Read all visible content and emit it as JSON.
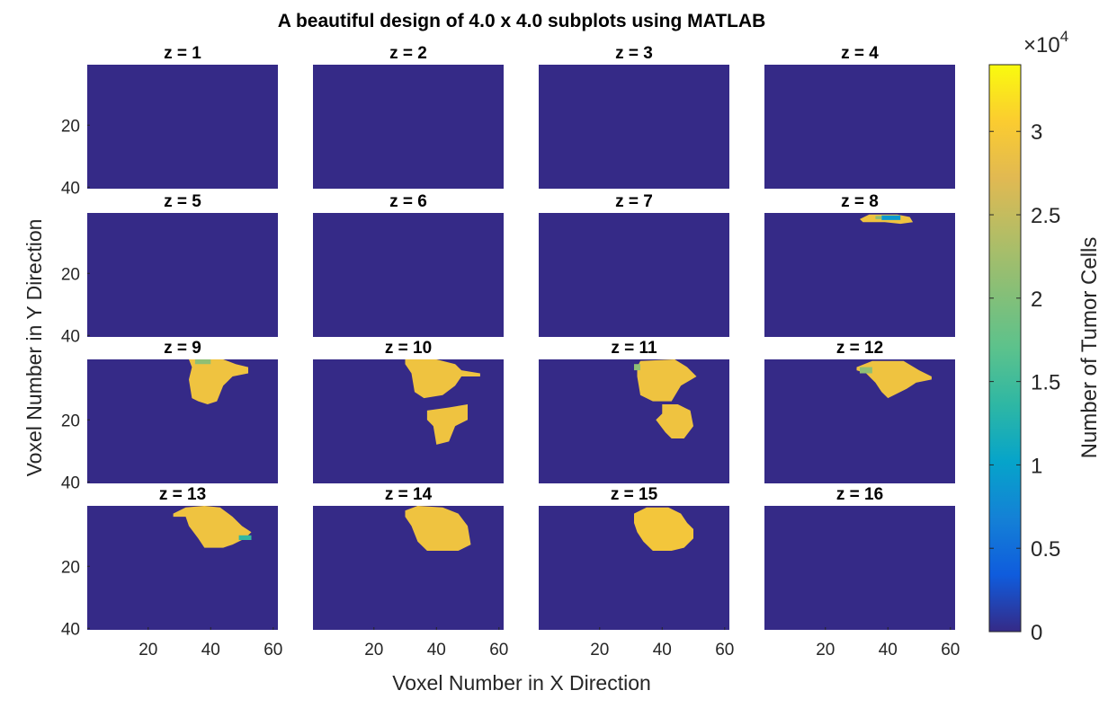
{
  "chart_data": {
    "type": "heatmap",
    "title": "A beautiful design of 4.0 x 4.0 subplots using MATLAB",
    "xlabel": "Voxel Number in X Direction",
    "ylabel": "Voxel Number in Y Direction",
    "grid": false,
    "layout": "4 x 4 subplots",
    "xlim": [
      0.5,
      61.5
    ],
    "ylim": [
      0.5,
      40.5
    ],
    "y_reversed": true,
    "x_ticks": [
      20,
      40,
      60
    ],
    "y_ticks": [
      20,
      40
    ],
    "x_tick_labels": [
      "20",
      "40",
      "60"
    ],
    "y_tick_labels": [
      "20",
      "40"
    ],
    "colorbar": {
      "label": "Number of Tumor Cells",
      "exponent_label": "×10",
      "exponent_power": "4",
      "limits": [
        0,
        34000
      ],
      "ticks": [
        0,
        0.5,
        1,
        1.5,
        2,
        2.5,
        3
      ],
      "tick_labels": [
        "0",
        "0.5",
        "1",
        "1.5",
        "2",
        "2.5",
        "3"
      ],
      "colormap": "parula",
      "low_color": "#352a87",
      "high_color": "#f9fb0e"
    },
    "subplots": [
      {
        "title": "z = 1",
        "regions": []
      },
      {
        "title": "z = 2",
        "regions": []
      },
      {
        "title": "z = 3",
        "regions": []
      },
      {
        "title": "z = 4",
        "regions": []
      },
      {
        "title": "z = 5",
        "regions": []
      },
      {
        "title": "z = 6",
        "regions": []
      },
      {
        "title": "z = 7",
        "regions": []
      },
      {
        "title": "z = 8",
        "regions": [
          {
            "value": 29000,
            "poly": [
              [
                31,
                2.5
              ],
              [
                34,
                1
              ],
              [
                43,
                1
              ],
              [
                47,
                1.8
              ],
              [
                48,
                3.5
              ],
              [
                44,
                4
              ],
              [
                39,
                3.5
              ],
              [
                32,
                3.5
              ]
            ]
          },
          {
            "value": 9000,
            "poly": [
              [
                38,
                1.3
              ],
              [
                44,
                1.3
              ],
              [
                44,
                2.8
              ],
              [
                38,
                2.8
              ]
            ]
          },
          {
            "value": 21000,
            "poly": [
              [
                36,
                1.5
              ],
              [
                38,
                1.5
              ],
              [
                38,
                2.5
              ],
              [
                36,
                2.5
              ]
            ]
          }
        ]
      },
      {
        "title": "z = 9",
        "regions": [
          {
            "value": 29000,
            "poly": [
              [
                33,
                0.5
              ],
              [
                44,
                0.5
              ],
              [
                48,
                2
              ],
              [
                52,
                3
              ],
              [
                52,
                5
              ],
              [
                47,
                6
              ],
              [
                44,
                9
              ],
              [
                42,
                14
              ],
              [
                39,
                15
              ],
              [
                36,
                14
              ],
              [
                34,
                13
              ],
              [
                33,
                7
              ],
              [
                34,
                3
              ]
            ]
          },
          {
            "value": 21000,
            "poly": [
              [
                35,
                0.5
              ],
              [
                40,
                0.5
              ],
              [
                40,
                2
              ],
              [
                35,
                2
              ]
            ]
          }
        ]
      },
      {
        "title": "z = 10",
        "regions": [
          {
            "value": 29000,
            "poly": [
              [
                30,
                0.5
              ],
              [
                40,
                0.5
              ],
              [
                46,
                2
              ],
              [
                48,
                4
              ],
              [
                54,
                5
              ],
              [
                54,
                6
              ],
              [
                48,
                6
              ],
              [
                46,
                9
              ],
              [
                42,
                12
              ],
              [
                36,
                13
              ],
              [
                33,
                11
              ],
              [
                32,
                5
              ],
              [
                30,
                2
              ]
            ]
          },
          {
            "value": 29000,
            "poly": [
              [
                37,
                17
              ],
              [
                44,
                16
              ],
              [
                50,
                15
              ],
              [
                50,
                20
              ],
              [
                46,
                22
              ],
              [
                44,
                27
              ],
              [
                40,
                28
              ],
              [
                39,
                22
              ],
              [
                37,
                20
              ]
            ]
          }
        ]
      },
      {
        "title": "z = 11",
        "regions": [
          {
            "value": 29000,
            "poly": [
              [
                33,
                1
              ],
              [
                44,
                0.5
              ],
              [
                48,
                3
              ],
              [
                51,
                6
              ],
              [
                46,
                9
              ],
              [
                43,
                14
              ],
              [
                37,
                14
              ],
              [
                33,
                12
              ],
              [
                32,
                6
              ],
              [
                32,
                3
              ]
            ]
          },
          {
            "value": 29000,
            "poly": [
              [
                40,
                15
              ],
              [
                45,
                15
              ],
              [
                49,
                17
              ],
              [
                50,
                22
              ],
              [
                47,
                26
              ],
              [
                43,
                26
              ],
              [
                41,
                24
              ],
              [
                38,
                20
              ],
              [
                40,
                18
              ]
            ]
          },
          {
            "value": 21000,
            "poly": [
              [
                31,
                2
              ],
              [
                33,
                2
              ],
              [
                33,
                4
              ],
              [
                31,
                4
              ]
            ]
          }
        ]
      },
      {
        "title": "z = 12",
        "regions": [
          {
            "value": 29000,
            "poly": [
              [
                30,
                3
              ],
              [
                35,
                1
              ],
              [
                45,
                1
              ],
              [
                50,
                4
              ],
              [
                54,
                6
              ],
              [
                54,
                7
              ],
              [
                49,
                8
              ],
              [
                46,
                10
              ],
              [
                40,
                13
              ],
              [
                38,
                11
              ],
              [
                36,
                8
              ],
              [
                33,
                5
              ],
              [
                30,
                4
              ]
            ]
          },
          {
            "value": 21000,
            "poly": [
              [
                31,
                3
              ],
              [
                35,
                3
              ],
              [
                35,
                5
              ],
              [
                31,
                5
              ]
            ]
          }
        ]
      },
      {
        "title": "z = 13",
        "regions": [
          {
            "value": 29000,
            "poly": [
              [
                28,
                3
              ],
              [
                32,
                1
              ],
              [
                38,
                0.5
              ],
              [
                43,
                1
              ],
              [
                47,
                4
              ],
              [
                50,
                7
              ],
              [
                53,
                9
              ],
              [
                51,
                11
              ],
              [
                47,
                13
              ],
              [
                44,
                14
              ],
              [
                38,
                14
              ],
              [
                36,
                11
              ],
              [
                33,
                7
              ],
              [
                32,
                4
              ],
              [
                28,
                4
              ]
            ]
          },
          {
            "value": 14000,
            "poly": [
              [
                49,
                10
              ],
              [
                53,
                10
              ],
              [
                53,
                11.5
              ],
              [
                49,
                11.5
              ]
            ]
          }
        ]
      },
      {
        "title": "z = 14",
        "regions": [
          {
            "value": 29000,
            "poly": [
              [
                30,
                2
              ],
              [
                34,
                0.5
              ],
              [
                42,
                1
              ],
              [
                47,
                3
              ],
              [
                50,
                7
              ],
              [
                51,
                13
              ],
              [
                47,
                15
              ],
              [
                37,
                15
              ],
              [
                34,
                12
              ],
              [
                32,
                7
              ],
              [
                30,
                4
              ]
            ]
          }
        ]
      },
      {
        "title": "z = 15",
        "regions": [
          {
            "value": 29500,
            "poly": [
              [
                31,
                3
              ],
              [
                35,
                1
              ],
              [
                42,
                1
              ],
              [
                46,
                3
              ],
              [
                48,
                6
              ],
              [
                50,
                8
              ],
              [
                50,
                11
              ],
              [
                47,
                14
              ],
              [
                43,
                15
              ],
              [
                37,
                15
              ],
              [
                34,
                12
              ],
              [
                32,
                9
              ],
              [
                31,
                6
              ]
            ]
          }
        ]
      },
      {
        "title": "z = 16",
        "regions": []
      }
    ]
  }
}
